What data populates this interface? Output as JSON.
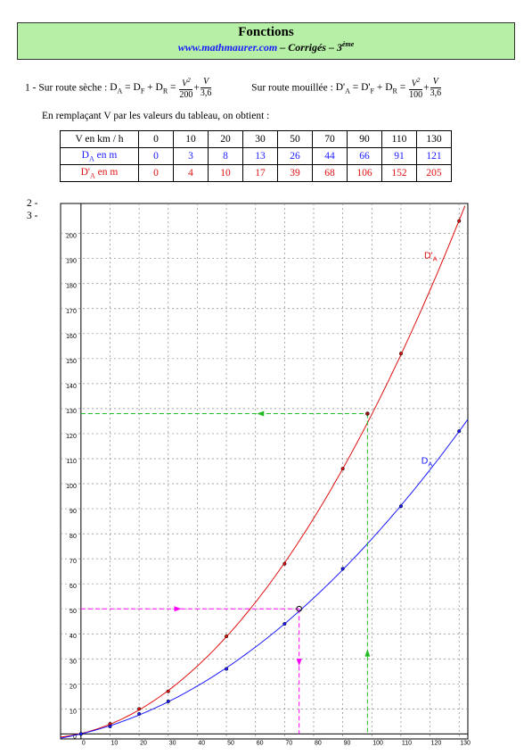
{
  "header": {
    "title": "Fonctions",
    "site": "www.mathmaurer.com",
    "subtitle_mid": " – Corrigés – 3",
    "subtitle_sup": "ème"
  },
  "q1": {
    "number": "1 -",
    "dry_prefix": "Sur route sèche :",
    "wet_prefix": "Sur route mouillée :",
    "dry_num1": "V",
    "dry_den1": "200",
    "dry_num2": "V",
    "dry_den2": "3,6",
    "wet_num1": "V",
    "wet_den1": "100",
    "wet_num2": "V",
    "wet_den2": "3,6",
    "intro": "En remplaçant V par les valeurs du tableau, on obtient :"
  },
  "table": {
    "row_v_label": "V en km / h",
    "row_da_label": "en m",
    "row_dpa_label": "en m",
    "v": [
      "0",
      "10",
      "20",
      "30",
      "50",
      "70",
      "90",
      "110",
      "130"
    ],
    "da": [
      "0",
      "3",
      "8",
      "13",
      "26",
      "44",
      "66",
      "91",
      "121"
    ],
    "dpa": [
      "0",
      "4",
      "10",
      "17",
      "39",
      "68",
      "106",
      "152",
      "205"
    ]
  },
  "q2": "2 -",
  "q3": "3 -",
  "chart_data": {
    "type": "line",
    "x_ticks": [
      0,
      10,
      20,
      30,
      40,
      50,
      60,
      70,
      80,
      90,
      100,
      110,
      120,
      130
    ],
    "y_ticks": [
      0,
      10,
      20,
      30,
      40,
      50,
      60,
      70,
      80,
      90,
      100,
      110,
      120,
      130,
      140,
      150,
      160,
      170,
      180,
      190,
      200
    ],
    "xlim": [
      -7,
      133
    ],
    "ylim": [
      -2,
      212
    ],
    "grid": true,
    "series": [
      {
        "name": "D'A",
        "color": "#e01010",
        "x": [
          0,
          10,
          20,
          30,
          50,
          70,
          90,
          110,
          130
        ],
        "y": [
          0,
          4,
          10,
          17,
          39,
          68,
          106,
          152,
          205
        ]
      },
      {
        "name": "DA",
        "color": "#1a1aff",
        "x": [
          0,
          10,
          20,
          30,
          50,
          70,
          90,
          110,
          130
        ],
        "y": [
          0,
          3,
          8,
          13,
          26,
          44,
          66,
          91,
          121
        ]
      }
    ],
    "annotations": {
      "magenta_point": {
        "x": 75,
        "y": 50,
        "color": "#ff00ff"
      },
      "green_point": {
        "x": 98.5,
        "y": 128,
        "color": "#22bb22"
      }
    }
  },
  "colors": {
    "header_bg": "#b6f0a6",
    "blue": "#1a1aff",
    "red": "#e01010",
    "magenta": "#ff00ff",
    "green": "#22bb22"
  }
}
